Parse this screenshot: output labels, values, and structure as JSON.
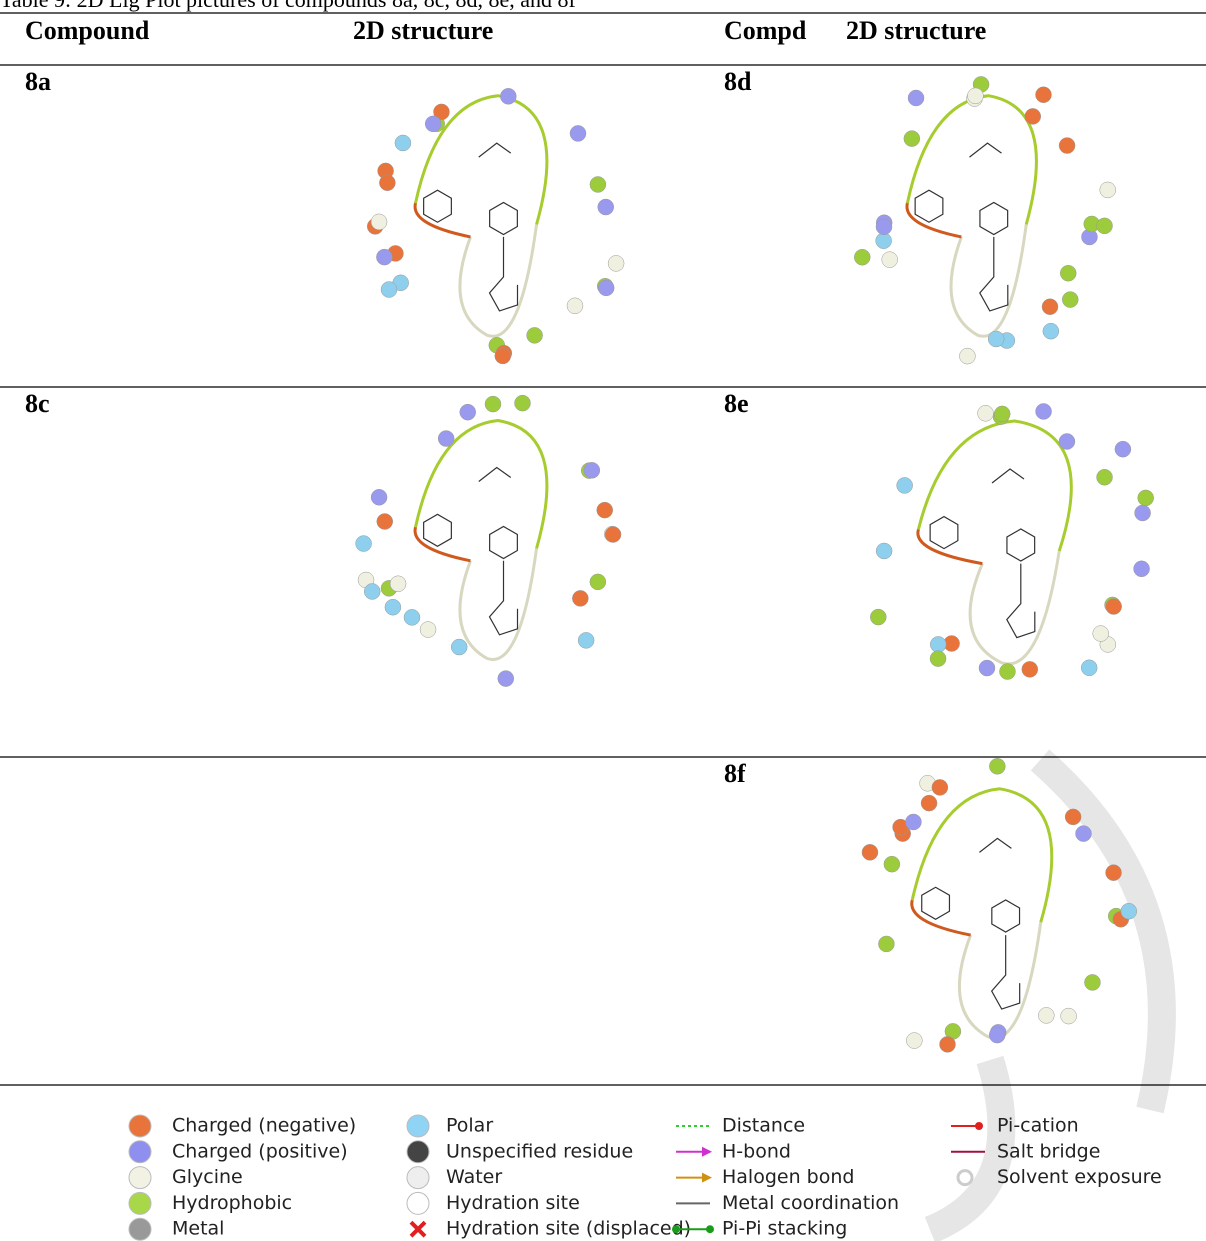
{
  "caption": "Table 9: 2D Lig Plot pictures of compounds 8a, 8c, 8d, 8e, and 8f",
  "table": {
    "header": [
      "Compound",
      "2D structure",
      "Compd",
      "2D structure"
    ],
    "rows": [
      {
        "left": "8a",
        "right": "8d"
      },
      {
        "left": "8c",
        "right": "8e"
      },
      {
        "right": "8f"
      }
    ]
  },
  "legend": [
    [
      "Charged (negative)",
      "Charged (positive)",
      "Glycine",
      "Hydrophobic",
      "Metal"
    ],
    [
      "Polar",
      "Unspecified residue",
      "Water",
      "Hydration site",
      "Hydration site (displaced)"
    ],
    [
      "Distance",
      "H-bond",
      "Halogen bond",
      "Metal coordination",
      "Pi-Pi stacking"
    ],
    [
      "Pi-cation",
      "Salt bridge",
      "Solvent exposure"
    ]
  ]
}
